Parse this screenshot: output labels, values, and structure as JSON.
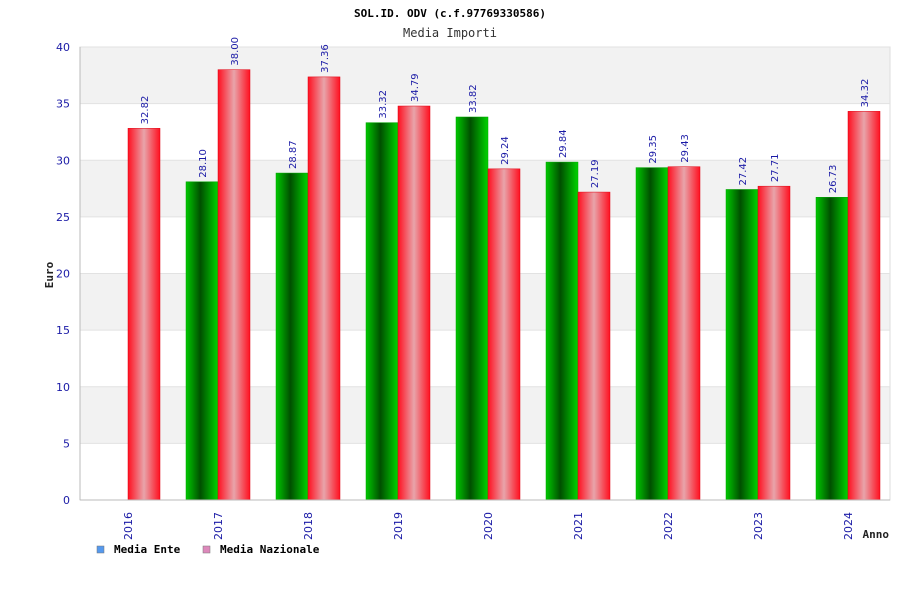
{
  "chart_data": {
    "type": "bar",
    "title": "SOL.ID. ODV (c.f.97769330586)",
    "subtitle": "Media Importi",
    "xlabel": "Anno",
    "ylabel": "Euro",
    "ylim": [
      0,
      40
    ],
    "yticks": [
      "0",
      "5",
      "10",
      "15",
      "20",
      "25",
      "30",
      "35",
      "40"
    ],
    "categories": [
      "2016",
      "2017",
      "2018",
      "2019",
      "2020",
      "2021",
      "2022",
      "2023",
      "2024"
    ],
    "series": [
      {
        "name": "Media Ente",
        "values": [
          null,
          28.1,
          28.87,
          33.32,
          33.82,
          29.84,
          29.35,
          27.42,
          26.73
        ],
        "labels": [
          "",
          "28.10",
          "28.87",
          "33.32",
          "33.82",
          "29.84",
          "29.35",
          "27.42",
          "26.73"
        ]
      },
      {
        "name": "Media Nazionale",
        "values": [
          32.82,
          38.0,
          37.36,
          34.79,
          29.24,
          27.19,
          29.43,
          27.71,
          34.32
        ],
        "labels": [
          "32.82",
          "38.00",
          "37.36",
          "34.79",
          "29.24",
          "27.19",
          "29.43",
          "27.71",
          "34.32"
        ]
      }
    ],
    "grid": true,
    "legend_position": "bottom-left",
    "colors": {
      "ente": "#00c400",
      "ente_dark": "#005a00",
      "nazionale": "#ff1a2a",
      "nazionale_light": "#e8a0a8",
      "legend_ente": "#5599ee",
      "legend_nazionale": "#dd88bb",
      "band": "#f2f2f2"
    }
  }
}
